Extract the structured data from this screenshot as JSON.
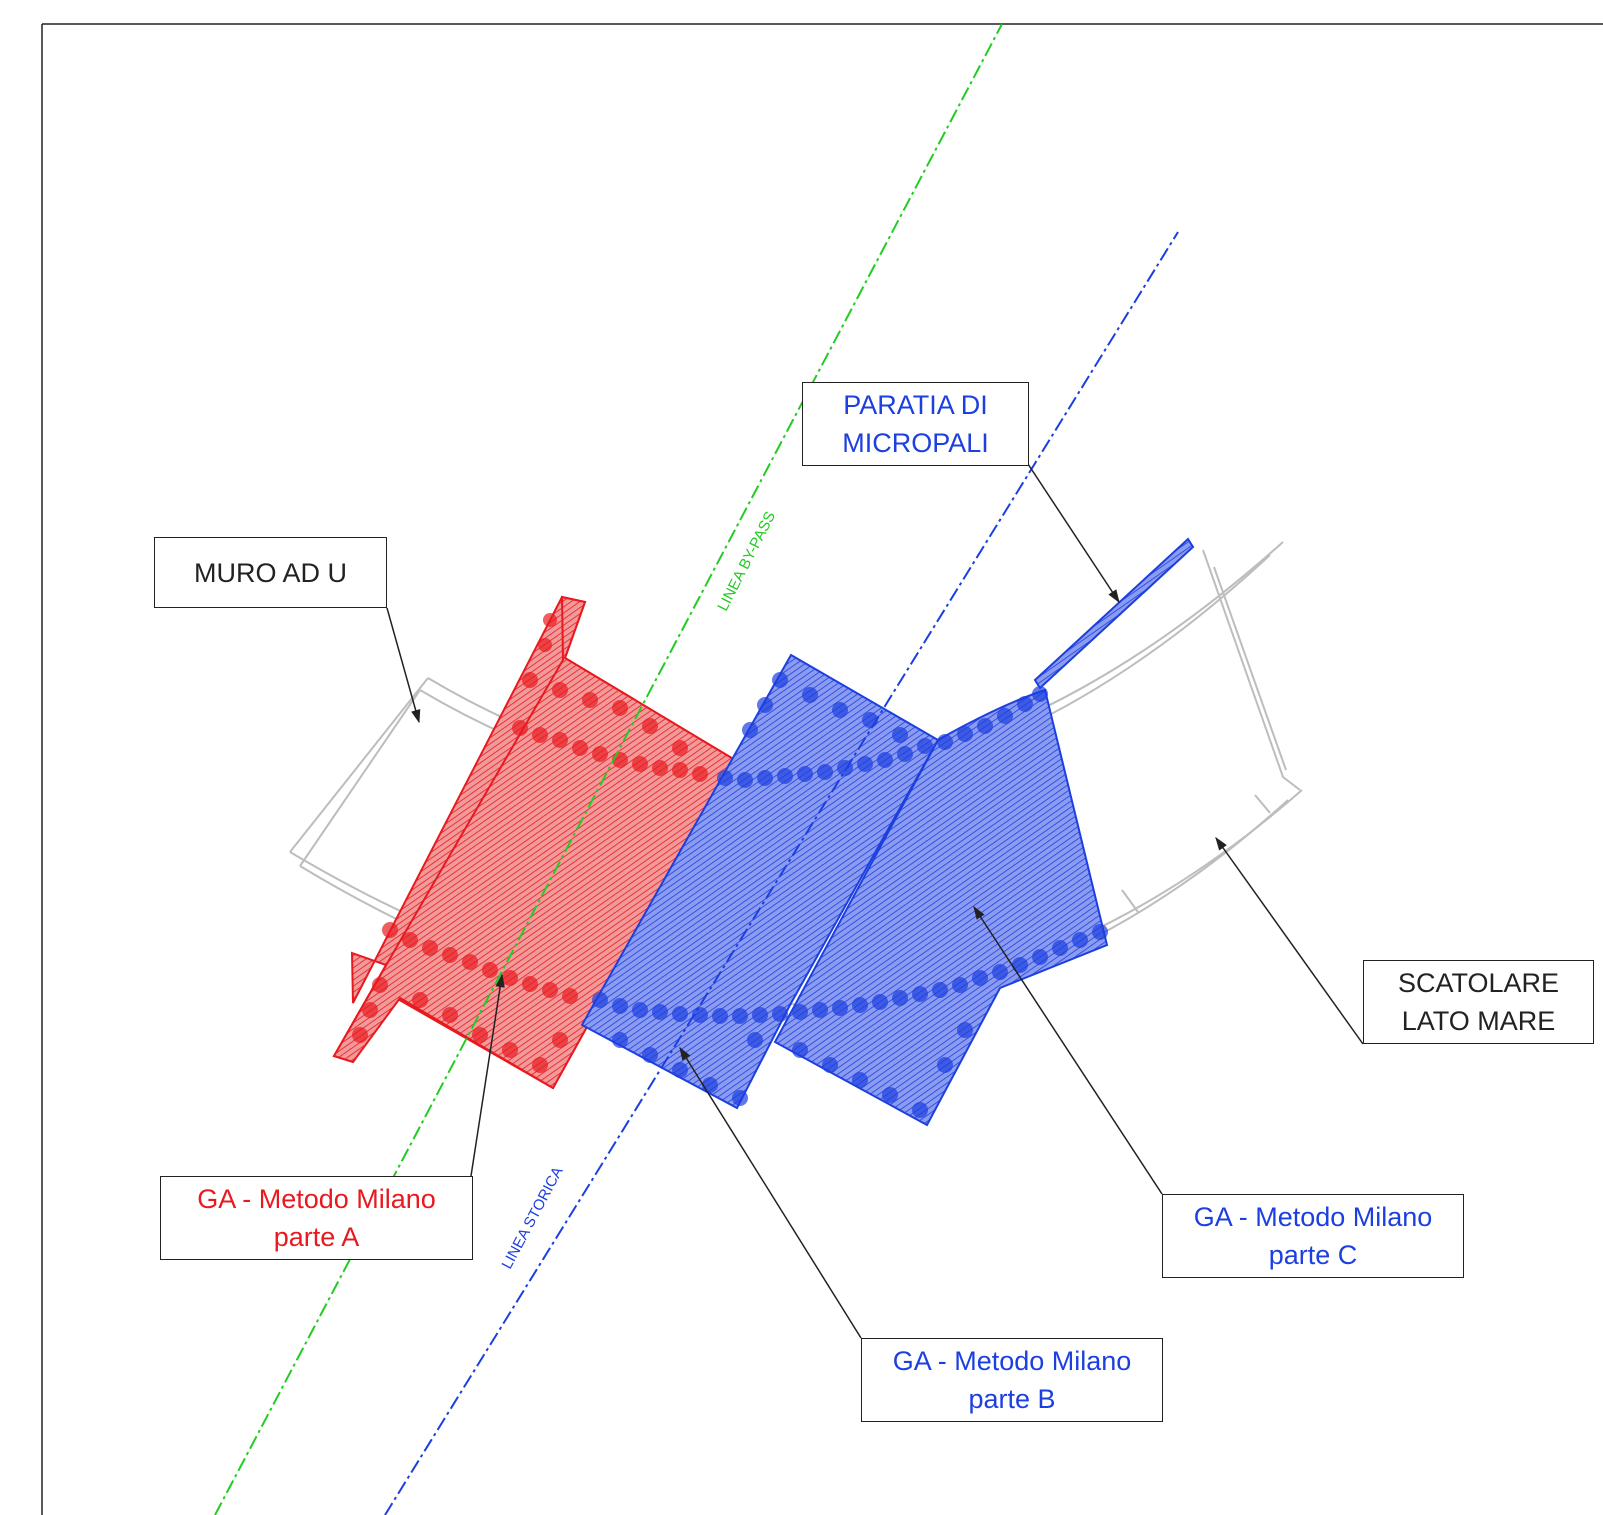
{
  "colors": {
    "red": "#e8191f",
    "blue": "#1c3fe0",
    "green": "#22cc22",
    "black": "#222222",
    "outline": "#bdbdbd"
  },
  "lines": {
    "bypass": "LINEA BY-PASS",
    "storica": "LINEA STORICA"
  },
  "labels": {
    "muro": "MURO AD U",
    "paratia": {
      "line1": "PARATIA DI",
      "line2": "MICROPALI"
    },
    "scatolare": {
      "line1": "SCATOLARE",
      "line2": "LATO MARE"
    },
    "parte_a": {
      "line1": "GA - Metodo Milano",
      "line2": "parte A"
    },
    "parte_b": {
      "line1": "GA - Metodo Milano",
      "line2": "parte B"
    },
    "parte_c": {
      "line1": "GA - Metodo Milano",
      "line2": "parte C"
    }
  }
}
